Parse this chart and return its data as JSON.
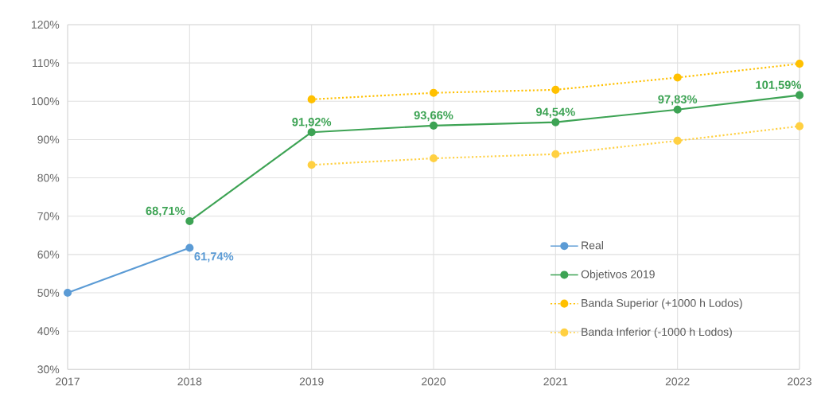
{
  "chart_data": {
    "type": "line",
    "x": [
      2017,
      2018,
      2019,
      2020,
      2021,
      2022,
      2023
    ],
    "series": [
      {
        "name": "Real",
        "color": "#5b9bd5",
        "line_style": "solid",
        "values": [
          50,
          61.74,
          null,
          null,
          null,
          null,
          null
        ],
        "value_labels": [
          null,
          "61,74%",
          null,
          null,
          null,
          null,
          null
        ]
      },
      {
        "name": "Objetivos 2019",
        "color": "#3da354",
        "line_style": "solid",
        "values": [
          null,
          68.71,
          91.92,
          93.66,
          94.54,
          97.83,
          101.59
        ],
        "value_labels": [
          null,
          "68,71%",
          "91,92%",
          "93,66%",
          "94,54%",
          "97,83%",
          "101,59%"
        ]
      },
      {
        "name": "Banda Superior (+1000 h Lodos)",
        "color": "#ffc000",
        "line_style": "dotted",
        "values": [
          null,
          null,
          100.5,
          102.2,
          103.0,
          106.2,
          109.8
        ]
      },
      {
        "name": "Banda Inferior (-1000 h Lodos)",
        "color": "#ffd042",
        "line_style": "dotted",
        "values": [
          null,
          null,
          83.4,
          85.1,
          86.2,
          89.7,
          93.5
        ]
      }
    ],
    "xlim": [
      2017,
      2023
    ],
    "xticks": [
      2017,
      2018,
      2019,
      2020,
      2021,
      2022,
      2023
    ],
    "ylim": [
      30,
      120
    ],
    "yticks": [
      {
        "value": 30,
        "label": "30%"
      },
      {
        "value": 40,
        "label": "40%"
      },
      {
        "value": 50,
        "label": "50%"
      },
      {
        "value": 60,
        "label": "60%"
      },
      {
        "value": 70,
        "label": "70%"
      },
      {
        "value": 80,
        "label": "80%"
      },
      {
        "value": 90,
        "label": "90%"
      },
      {
        "value": 100,
        "label": "100%"
      },
      {
        "value": 110,
        "label": "110%"
      },
      {
        "value": 120,
        "label": "120%"
      }
    ],
    "grid": true,
    "legend": "bottom right",
    "marker": "circle"
  }
}
